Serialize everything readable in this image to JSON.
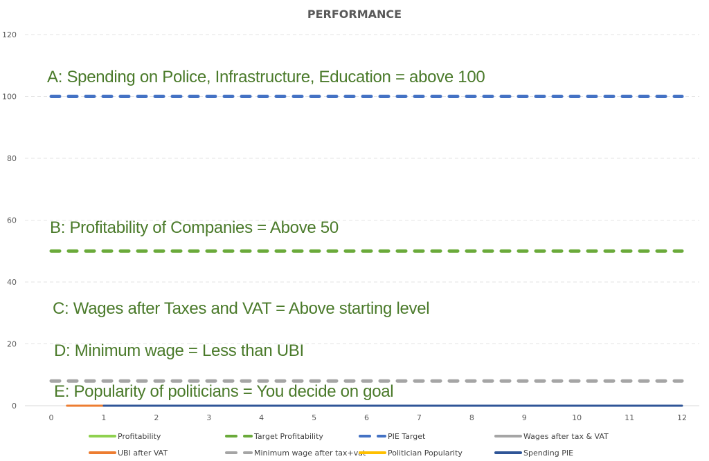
{
  "chart_data": {
    "type": "line",
    "title": "PERFORMANCE",
    "xlabel": "",
    "ylabel": "",
    "xlim": [
      0,
      12
    ],
    "ylim": [
      0,
      120
    ],
    "x_ticks": [
      "0",
      "1",
      "2",
      "3",
      "4",
      "5",
      "6",
      "7",
      "8",
      "9",
      "10",
      "11",
      "12"
    ],
    "y_ticks": [
      "0",
      "20",
      "40",
      "60",
      "80",
      "100",
      "120"
    ],
    "grid": "horizontal dashed",
    "legend_position": "bottom",
    "series": [
      {
        "name": "Profitability",
        "color": "#8fd14f",
        "style": "solid",
        "x": [],
        "y": []
      },
      {
        "name": "Target Profitability",
        "color": "#6aaa3a",
        "style": "dashed",
        "x": [
          0,
          12
        ],
        "y": [
          50,
          50
        ]
      },
      {
        "name": "PIE Target",
        "color": "#4472c4",
        "style": "dashed",
        "x": [
          0,
          12
        ],
        "y": [
          100,
          100
        ]
      },
      {
        "name": "Wages after tax & VAT",
        "color": "#a5a5a5",
        "style": "solid",
        "x": [],
        "y": []
      },
      {
        "name": "UBI after VAT",
        "color": "#ed7d31",
        "style": "solid",
        "x": [
          0.3,
          1
        ],
        "y": [
          0,
          0
        ]
      },
      {
        "name": "Minimum wage after tax+vat",
        "color": "#a5a5a5",
        "style": "dashed",
        "x": [
          0,
          12
        ],
        "y": [
          8,
          8
        ]
      },
      {
        "name": "Politician Popularity",
        "color": "#ffc000",
        "style": "solid",
        "x": [],
        "y": []
      },
      {
        "name": "Spending PIE",
        "color": "#2f5597",
        "style": "solid",
        "x": [
          1,
          12
        ],
        "y": [
          0,
          0
        ]
      }
    ],
    "annotations": [
      "A: Spending on Police, Infrastructure, Education = above 100",
      "B: Profitability of Companies = Above 50",
      "C: Wages after Taxes and VAT = Above starting level",
      "D: Minimum wage = Less than UBI",
      "E: Popularity of politicians = You decide on goal"
    ]
  }
}
